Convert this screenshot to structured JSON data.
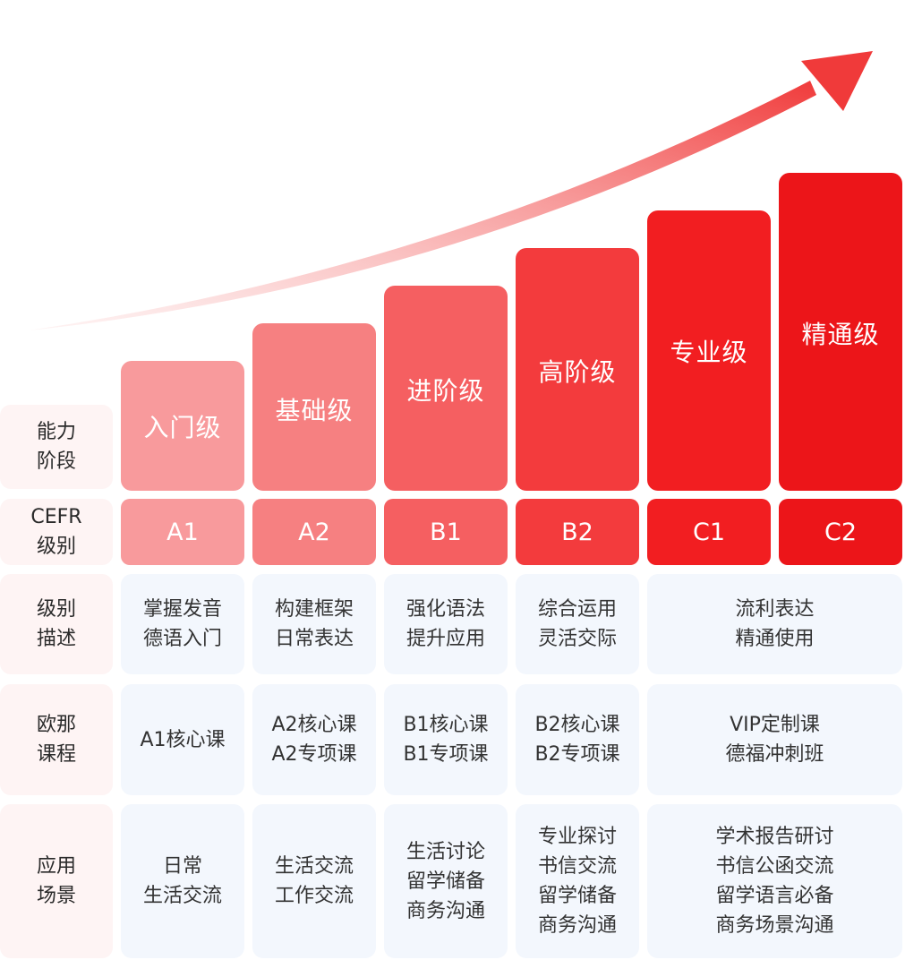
{
  "arrow": {
    "gradient_start": "#fde9e9",
    "gradient_end": "#f03a3a"
  },
  "row_headers": {
    "stage": [
      "能力",
      "阶段"
    ],
    "cefr": [
      "CEFR",
      "级别"
    ],
    "description": [
      "级别",
      "描述"
    ],
    "course": [
      "欧那",
      "课程"
    ],
    "scenario": [
      "应用",
      "场景"
    ]
  },
  "levels": [
    {
      "name": "入门级",
      "cefr": "A1",
      "color": "#f89a9c"
    },
    {
      "name": "基础级",
      "cefr": "A2",
      "color": "#f68081"
    },
    {
      "name": "进阶级",
      "cefr": "B1",
      "color": "#f55f61"
    },
    {
      "name": "高阶级",
      "cefr": "B2",
      "color": "#f33b3d"
    },
    {
      "name": "专业级",
      "cefr": "C1",
      "color": "#f21e21"
    },
    {
      "name": "精通级",
      "cefr": "C2",
      "color": "#ec1519"
    }
  ],
  "descriptions": [
    [
      "掌握发音",
      "德语入门"
    ],
    [
      "构建框架",
      "日常表达"
    ],
    [
      "强化语法",
      "提升应用"
    ],
    [
      "综合运用",
      "灵活交际"
    ],
    [
      "流利表达",
      "精通使用"
    ]
  ],
  "courses": [
    [
      "A1核心课"
    ],
    [
      "A2核心课",
      "A2专项课"
    ],
    [
      "B1核心课",
      "B1专项课"
    ],
    [
      "B2核心课",
      "B2专项课"
    ],
    [
      "VIP定制课",
      "德福冲刺班"
    ]
  ],
  "scenarios": [
    [
      "日常",
      "生活交流"
    ],
    [
      "生活交流",
      "工作交流"
    ],
    [
      "生活讨论",
      "留学储备",
      "商务沟通"
    ],
    [
      "专业探讨",
      "书信交流",
      "留学储备",
      "商务沟通"
    ],
    [
      "学术报告研讨",
      "书信公函交流",
      "留学语言必备",
      "商务场景沟通"
    ]
  ]
}
